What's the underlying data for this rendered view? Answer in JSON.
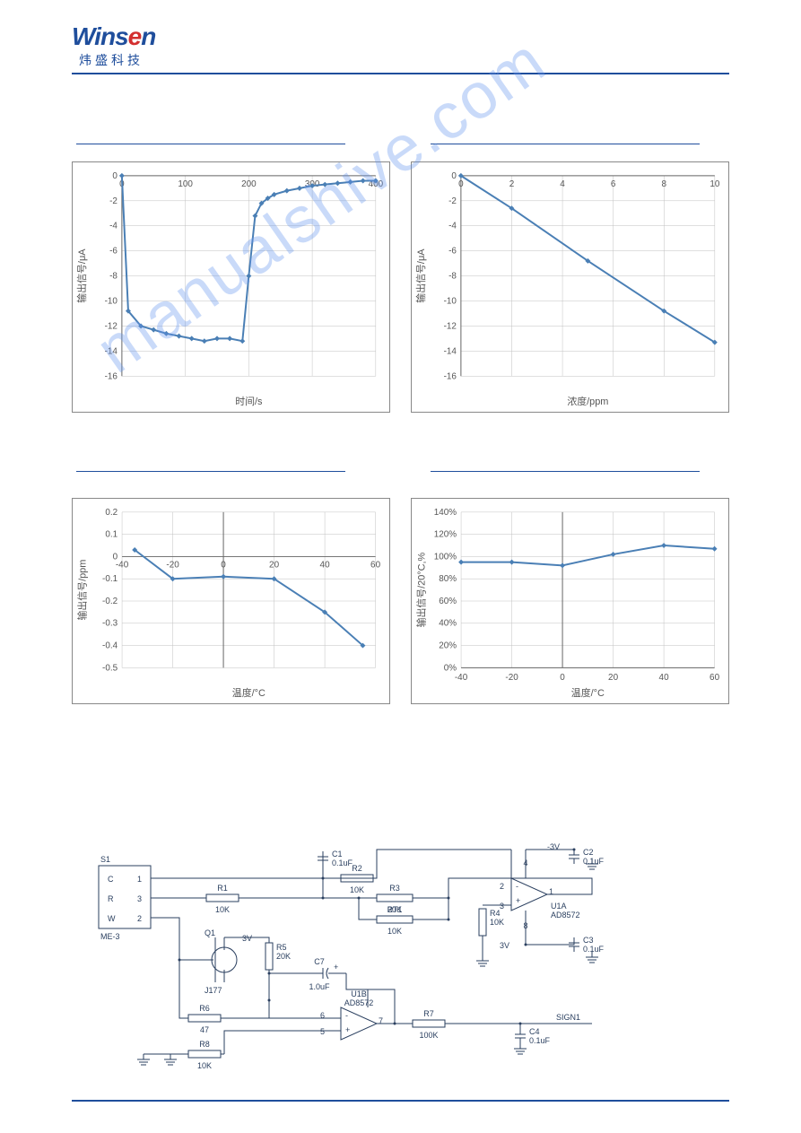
{
  "logo": {
    "text_part1": "Wins",
    "text_red": "e",
    "text_part2": "n",
    "subtitle": "炜盛科技",
    "color_main": "#1f4e9c",
    "color_red": "#d32f2f"
  },
  "watermark": "manualshive.com",
  "chart1": {
    "type": "line",
    "xlabel": "时间/s",
    "ylabel": "输出信号/μA",
    "xlim": [
      0,
      400
    ],
    "ylim": [
      -16,
      0
    ],
    "xtick_step": 100,
    "ytick_step": 2,
    "line_color": "#4a7fb5",
    "marker_color": "#4a7fb5",
    "marker_size": 3,
    "grid_color": "#c0c0c0",
    "background_color": "#ffffff",
    "label_fontsize": 11,
    "tick_fontsize": 10,
    "x": [
      0,
      10,
      30,
      50,
      70,
      90,
      110,
      130,
      150,
      170,
      190,
      200,
      210,
      220,
      230,
      240,
      260,
      280,
      300,
      320,
      340,
      360,
      380,
      400
    ],
    "y": [
      0,
      -10.8,
      -12.0,
      -12.3,
      -12.6,
      -12.8,
      -13.0,
      -13.2,
      -13.0,
      -13.0,
      -13.2,
      -8.0,
      -3.2,
      -2.2,
      -1.8,
      -1.5,
      -1.2,
      -1.0,
      -0.8,
      -0.7,
      -0.6,
      -0.5,
      -0.4,
      -0.4
    ]
  },
  "chart2": {
    "type": "line",
    "xlabel": "浓度/ppm",
    "ylabel": "输出信号/μA",
    "xlim": [
      0,
      10
    ],
    "ylim": [
      -16,
      0
    ],
    "xtick_step": 2,
    "ytick_step": 2,
    "line_color": "#4a7fb5",
    "marker_color": "#4a7fb5",
    "marker_size": 3,
    "grid_color": "#c0c0c0",
    "background_color": "#ffffff",
    "label_fontsize": 11,
    "tick_fontsize": 10,
    "x": [
      0,
      2,
      5,
      8,
      10
    ],
    "y": [
      0,
      -2.6,
      -6.8,
      -10.8,
      -13.3
    ]
  },
  "chart3": {
    "type": "line",
    "xlabel": "温度/°C",
    "ylabel": "输出信号/ppm",
    "xlim": [
      -40,
      60
    ],
    "ylim": [
      -0.5,
      0.2
    ],
    "xtick_step": 20,
    "ytick_step": 0.1,
    "line_color": "#4a7fb5",
    "marker_color": "#4a7fb5",
    "marker_size": 3,
    "grid_color": "#c0c0c0",
    "background_color": "#ffffff",
    "label_fontsize": 11,
    "tick_fontsize": 10,
    "x": [
      -35,
      -20,
      0,
      20,
      40,
      55
    ],
    "y": [
      0.03,
      -0.1,
      -0.09,
      -0.1,
      -0.25,
      -0.4
    ]
  },
  "chart4": {
    "type": "line",
    "xlabel": "温度/°C",
    "ylabel": "输出信号/20°C,%",
    "xlim": [
      -40,
      60
    ],
    "ylim": [
      0,
      140
    ],
    "xtick_step": 20,
    "ytick_step": 20,
    "y_format": "percent",
    "line_color": "#4a7fb5",
    "marker_color": "#4a7fb5",
    "marker_size": 3,
    "grid_color": "#c0c0c0",
    "background_color": "#ffffff",
    "label_fontsize": 11,
    "tick_fontsize": 10,
    "x": [
      -40,
      -20,
      0,
      20,
      40,
      60
    ],
    "y": [
      95,
      95,
      92,
      102,
      110,
      107
    ]
  },
  "circuit": {
    "sensor_name": "ME-3",
    "sensor_pins": {
      "C": "1",
      "R": "3",
      "W": "2"
    },
    "sensor_box_label": "S1",
    "components": {
      "R1": "10K",
      "R2": "10K",
      "R3": "20K",
      "R4": "10K",
      "R5": "20K",
      "R6": "47",
      "R7": "100K",
      "R8": "10K",
      "RT1": "10K",
      "C1": "0.1uF",
      "C2": "0.1uF",
      "C3": "0.1uF",
      "C4": "0.1uF",
      "C7": "1.0uF",
      "Q1": "J177",
      "U1A": "AD8572",
      "U1B": "AD8572"
    },
    "voltages": {
      "pos": "3V",
      "neg": "-3V"
    },
    "output": "SIGN1",
    "line_color": "#2a3f5f",
    "text_color": "#2a3f5f",
    "fontsize": 9
  }
}
